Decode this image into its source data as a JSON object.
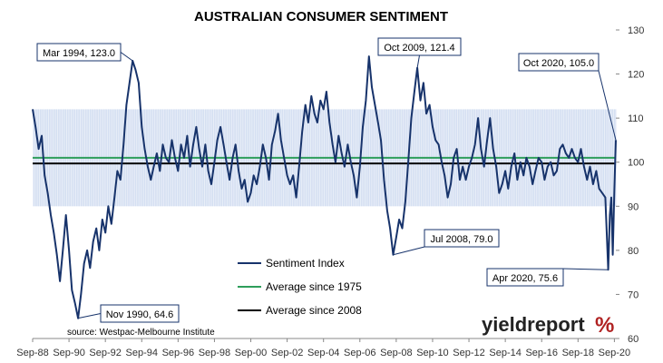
{
  "chart_data": {
    "type": "line",
    "title": "AUSTRALIAN CONSUMER SENTIMENT",
    "ylim": [
      60,
      130
    ],
    "yticks": [
      60,
      70,
      80,
      90,
      100,
      110,
      120,
      130
    ],
    "x_tick_labels": [
      "Sep-88",
      "Sep-90",
      "Sep-92",
      "Sep-94",
      "Sep-96",
      "Sep-98",
      "Sep-00",
      "Sep-02",
      "Sep-04",
      "Sep-06",
      "Sep-08",
      "Sep-10",
      "Sep-12",
      "Sep-14",
      "Sep-16",
      "Sep-18",
      "Sep-20"
    ],
    "xlim_years": [
      1988.67,
      2020.75
    ],
    "band": {
      "low": 90,
      "high": 112
    },
    "series": [
      {
        "name": "Sentiment Index",
        "color": "#17336b",
        "points": [
          [
            1988.67,
            112
          ],
          [
            1988.83,
            108
          ],
          [
            1989.0,
            103
          ],
          [
            1989.17,
            106
          ],
          [
            1989.33,
            97
          ],
          [
            1989.5,
            93
          ],
          [
            1989.67,
            88
          ],
          [
            1989.83,
            84
          ],
          [
            1990.0,
            79
          ],
          [
            1990.17,
            73
          ],
          [
            1990.33,
            80
          ],
          [
            1990.5,
            88
          ],
          [
            1990.67,
            80
          ],
          [
            1990.83,
            71
          ],
          [
            1991.0,
            68
          ],
          [
            1991.17,
            64.6
          ],
          [
            1991.33,
            70
          ],
          [
            1991.5,
            77
          ],
          [
            1991.67,
            80
          ],
          [
            1991.83,
            76
          ],
          [
            1992.0,
            82
          ],
          [
            1992.17,
            85
          ],
          [
            1992.33,
            80
          ],
          [
            1992.5,
            87
          ],
          [
            1992.67,
            84
          ],
          [
            1992.83,
            90
          ],
          [
            1993.0,
            86
          ],
          [
            1993.17,
            92
          ],
          [
            1993.33,
            98
          ],
          [
            1993.5,
            96
          ],
          [
            1993.67,
            104
          ],
          [
            1993.83,
            113
          ],
          [
            1994.0,
            118
          ],
          [
            1994.17,
            123
          ],
          [
            1994.33,
            121
          ],
          [
            1994.5,
            118
          ],
          [
            1994.67,
            108
          ],
          [
            1994.83,
            103
          ],
          [
            1995.0,
            99
          ],
          [
            1995.17,
            96
          ],
          [
            1995.33,
            99
          ],
          [
            1995.5,
            102
          ],
          [
            1995.67,
            98
          ],
          [
            1995.83,
            104
          ],
          [
            1996.0,
            101
          ],
          [
            1996.17,
            100
          ],
          [
            1996.33,
            105
          ],
          [
            1996.5,
            101
          ],
          [
            1996.67,
            98
          ],
          [
            1996.83,
            104
          ],
          [
            1997.0,
            101
          ],
          [
            1997.17,
            106
          ],
          [
            1997.33,
            99
          ],
          [
            1997.5,
            104
          ],
          [
            1997.67,
            108
          ],
          [
            1997.83,
            103
          ],
          [
            1998.0,
            99
          ],
          [
            1998.17,
            104
          ],
          [
            1998.33,
            98
          ],
          [
            1998.5,
            95
          ],
          [
            1998.67,
            100
          ],
          [
            1998.83,
            105
          ],
          [
            1999.0,
            108
          ],
          [
            1999.17,
            104
          ],
          [
            1999.33,
            100
          ],
          [
            1999.5,
            96
          ],
          [
            1999.67,
            101
          ],
          [
            1999.83,
            104
          ],
          [
            2000.0,
            98
          ],
          [
            2000.17,
            94
          ],
          [
            2000.33,
            96
          ],
          [
            2000.5,
            91
          ],
          [
            2000.67,
            93
          ],
          [
            2000.83,
            97
          ],
          [
            2001.0,
            95
          ],
          [
            2001.17,
            99
          ],
          [
            2001.33,
            104
          ],
          [
            2001.5,
            101
          ],
          [
            2001.67,
            96
          ],
          [
            2001.83,
            104
          ],
          [
            2002.0,
            107
          ],
          [
            2002.17,
            111
          ],
          [
            2002.33,
            105
          ],
          [
            2002.5,
            101
          ],
          [
            2002.67,
            97
          ],
          [
            2002.83,
            95
          ],
          [
            2003.0,
            97
          ],
          [
            2003.17,
            92
          ],
          [
            2003.33,
            99
          ],
          [
            2003.5,
            107
          ],
          [
            2003.67,
            113
          ],
          [
            2003.83,
            109
          ],
          [
            2004.0,
            115
          ],
          [
            2004.17,
            111
          ],
          [
            2004.33,
            109
          ],
          [
            2004.5,
            114
          ],
          [
            2004.67,
            112
          ],
          [
            2004.83,
            116
          ],
          [
            2005.0,
            109
          ],
          [
            2005.17,
            104
          ],
          [
            2005.33,
            100
          ],
          [
            2005.5,
            106
          ],
          [
            2005.67,
            102
          ],
          [
            2005.83,
            99
          ],
          [
            2006.0,
            104
          ],
          [
            2006.17,
            100
          ],
          [
            2006.33,
            97
          ],
          [
            2006.5,
            92
          ],
          [
            2006.67,
            99
          ],
          [
            2006.83,
            108
          ],
          [
            2007.0,
            114
          ],
          [
            2007.17,
            124
          ],
          [
            2007.33,
            117
          ],
          [
            2007.5,
            113
          ],
          [
            2007.67,
            109
          ],
          [
            2007.83,
            105
          ],
          [
            2008.0,
            96
          ],
          [
            2008.17,
            89
          ],
          [
            2008.33,
            85
          ],
          [
            2008.5,
            79
          ],
          [
            2008.67,
            83
          ],
          [
            2008.83,
            87
          ],
          [
            2009.0,
            85
          ],
          [
            2009.17,
            91
          ],
          [
            2009.33,
            100
          ],
          [
            2009.5,
            110
          ],
          [
            2009.67,
            116
          ],
          [
            2009.83,
            121.4
          ],
          [
            2010.0,
            114
          ],
          [
            2010.17,
            118
          ],
          [
            2010.33,
            111
          ],
          [
            2010.5,
            113
          ],
          [
            2010.67,
            108
          ],
          [
            2010.83,
            105
          ],
          [
            2011.0,
            104
          ],
          [
            2011.17,
            100
          ],
          [
            2011.33,
            97
          ],
          [
            2011.5,
            92
          ],
          [
            2011.67,
            95
          ],
          [
            2011.83,
            101
          ],
          [
            2012.0,
            103
          ],
          [
            2012.17,
            96
          ],
          [
            2012.33,
            99
          ],
          [
            2012.5,
            96
          ],
          [
            2012.67,
            99
          ],
          [
            2012.83,
            101
          ],
          [
            2013.0,
            104
          ],
          [
            2013.17,
            110
          ],
          [
            2013.33,
            103
          ],
          [
            2013.5,
            99
          ],
          [
            2013.67,
            105
          ],
          [
            2013.83,
            110
          ],
          [
            2014.0,
            103
          ],
          [
            2014.17,
            99
          ],
          [
            2014.33,
            93
          ],
          [
            2014.5,
            95
          ],
          [
            2014.67,
            98
          ],
          [
            2014.83,
            94
          ],
          [
            2015.0,
            99
          ],
          [
            2015.17,
            102
          ],
          [
            2015.33,
            96
          ],
          [
            2015.5,
            100
          ],
          [
            2015.67,
            97
          ],
          [
            2015.83,
            101
          ],
          [
            2016.0,
            99
          ],
          [
            2016.17,
            95
          ],
          [
            2016.33,
            98
          ],
          [
            2016.5,
            101
          ],
          [
            2016.67,
            100
          ],
          [
            2016.83,
            96
          ],
          [
            2017.0,
            99
          ],
          [
            2017.17,
            100
          ],
          [
            2017.33,
            97
          ],
          [
            2017.5,
            98
          ],
          [
            2017.67,
            103
          ],
          [
            2017.83,
            104
          ],
          [
            2018.0,
            102
          ],
          [
            2018.17,
            101
          ],
          [
            2018.33,
            103
          ],
          [
            2018.5,
            101
          ],
          [
            2018.67,
            100
          ],
          [
            2018.83,
            103
          ],
          [
            2019.0,
            99
          ],
          [
            2019.17,
            96
          ],
          [
            2019.33,
            99
          ],
          [
            2019.5,
            95
          ],
          [
            2019.67,
            98
          ],
          [
            2019.83,
            94
          ],
          [
            2020.0,
            93
          ],
          [
            2020.17,
            92
          ],
          [
            2020.33,
            75.6
          ],
          [
            2020.42,
            88
          ],
          [
            2020.5,
            92
          ],
          [
            2020.58,
            79
          ],
          [
            2020.67,
            94
          ],
          [
            2020.75,
            105
          ]
        ]
      },
      {
        "name": "Average since 1975",
        "color": "#2e9e5b",
        "constant": 101
      },
      {
        "name": "Average since 2008",
        "color": "#000000",
        "constant": 99.7
      }
    ],
    "annotations": [
      {
        "text": "Mar 1994, 123.0",
        "x": 1994.17,
        "y": 123.0
      },
      {
        "text": "Nov 1990, 64.6",
        "x": 1991.17,
        "y": 64.6
      },
      {
        "text": "Oct 2009, 121.4",
        "x": 2009.83,
        "y": 121.4
      },
      {
        "text": "Jul 2008, 79.0",
        "x": 2008.5,
        "y": 79.0
      },
      {
        "text": "Oct 2020, 105.0",
        "x": 2020.75,
        "y": 105.0
      },
      {
        "text": "Apr 2020, 75.6",
        "x": 2020.33,
        "y": 75.6
      }
    ],
    "source": "source: Westpac-Melbourne Institute"
  },
  "brand": {
    "name": "yieldreport",
    "symbol": "%"
  }
}
